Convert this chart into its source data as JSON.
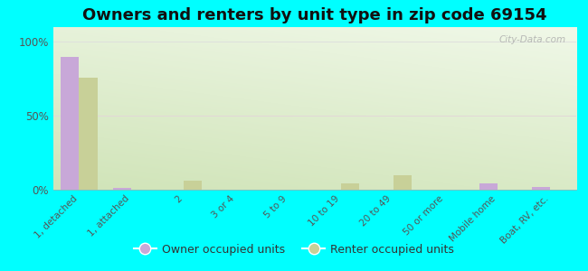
{
  "title": "Owners and renters by unit type in zip code 69154",
  "categories": [
    "1, detached",
    "1, attached",
    "2",
    "3 or 4",
    "5 to 9",
    "10 to 19",
    "20 to 49",
    "50 or more",
    "Mobile home",
    "Boat, RV, etc."
  ],
  "owner_values": [
    90,
    1,
    0,
    0,
    0,
    0,
    0,
    0,
    4,
    2
  ],
  "renter_values": [
    76,
    0,
    6,
    0,
    0,
    4,
    10,
    0,
    0,
    0
  ],
  "owner_color": "#c8a8d8",
  "renter_color": "#c8d098",
  "background_color": "#00ffff",
  "yticks": [
    0,
    50,
    100
  ],
  "ylim": [
    0,
    110
  ],
  "bar_width": 0.35,
  "title_fontsize": 13,
  "watermark": "City-Data.com",
  "grid_color": "#dddddd",
  "midline_color": "#ffbbbb",
  "tick_label_color": "#555555",
  "plot_bg_colors": [
    "#d8e8c8",
    "#eef6e4"
  ]
}
